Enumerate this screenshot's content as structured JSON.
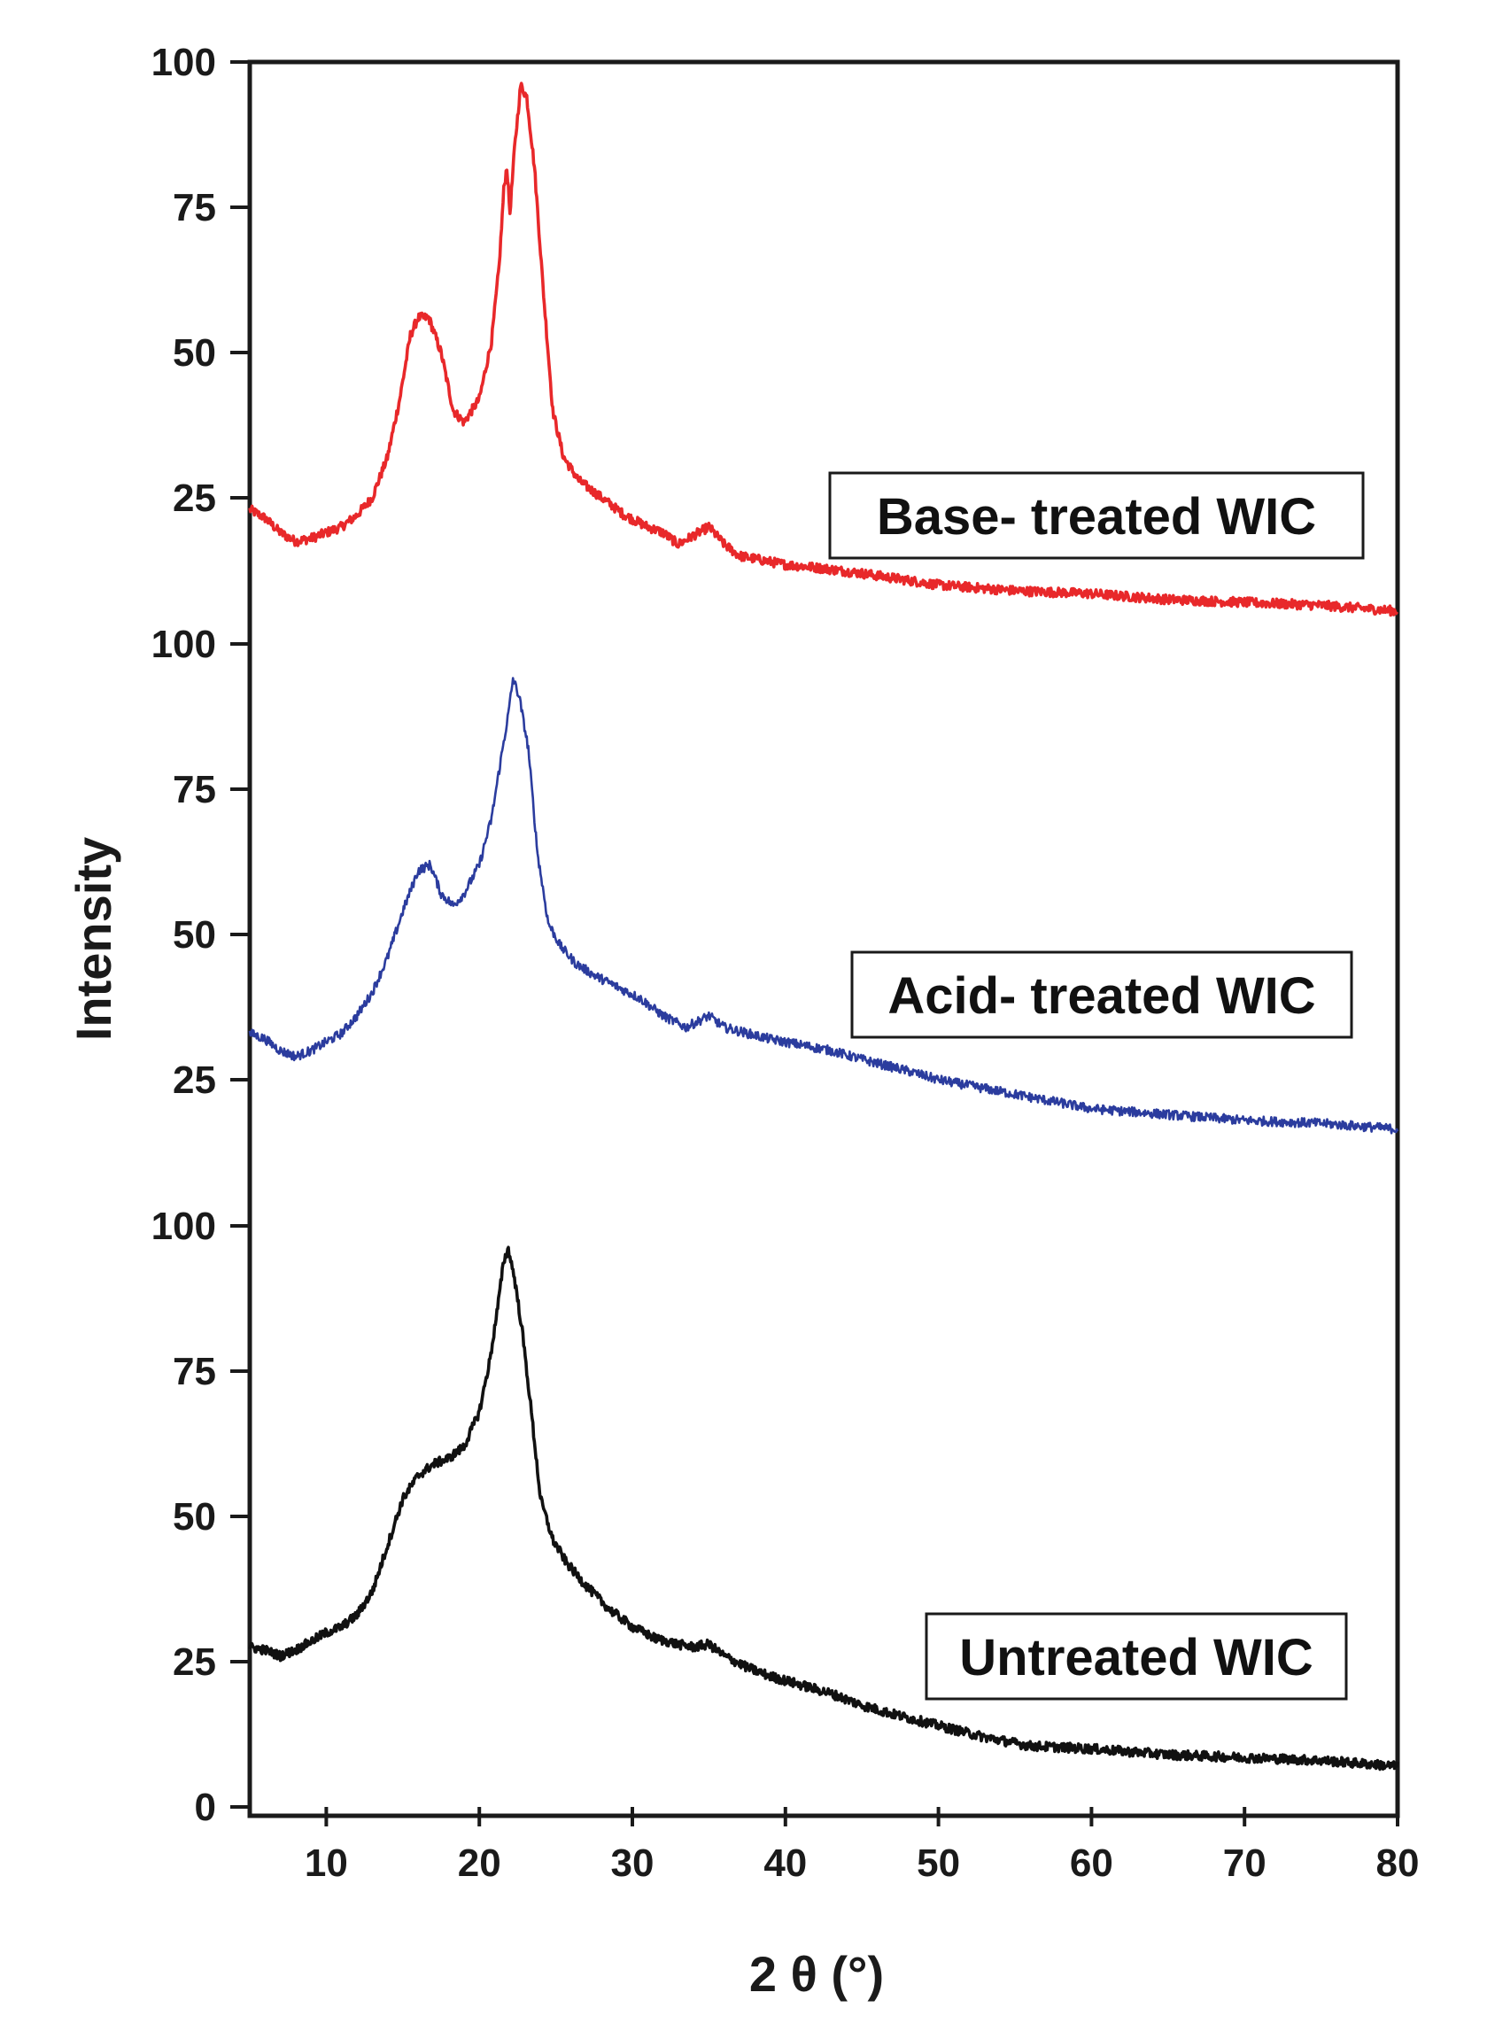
{
  "chart_data": {
    "type": "line",
    "xlabel": "2 θ (°)",
    "ylabel": "Intensity",
    "xlim": [
      5,
      80
    ],
    "x_ticks": [
      10,
      20,
      30,
      40,
      50,
      60,
      70,
      80
    ],
    "grid": false,
    "panels": [
      {
        "label": "Base- treated WIC",
        "color": "#e8282a",
        "ylim": [
          0,
          100
        ],
        "y_ticks": [
          25,
          50,
          75,
          100
        ],
        "points": [
          [
            5,
            23
          ],
          [
            6,
            21.5
          ],
          [
            7,
            19
          ],
          [
            8,
            17.5
          ],
          [
            9,
            18
          ],
          [
            10,
            19
          ],
          [
            11,
            20
          ],
          [
            12,
            22
          ],
          [
            13,
            25
          ],
          [
            14,
            32
          ],
          [
            14.8,
            42
          ],
          [
            15.5,
            53
          ],
          [
            16,
            56
          ],
          [
            16.7,
            56
          ],
          [
            17.5,
            50
          ],
          [
            18.3,
            40
          ],
          [
            19,
            38
          ],
          [
            20,
            42
          ],
          [
            20.8,
            52
          ],
          [
            21.3,
            65
          ],
          [
            21.6,
            78
          ],
          [
            21.8,
            82
          ],
          [
            22,
            74
          ],
          [
            22.3,
            85
          ],
          [
            22.7,
            96
          ],
          [
            23.1,
            94
          ],
          [
            23.6,
            82
          ],
          [
            24.2,
            60
          ],
          [
            24.8,
            40
          ],
          [
            25.5,
            32
          ],
          [
            26.5,
            28
          ],
          [
            28,
            25
          ],
          [
            29.5,
            22
          ],
          [
            31,
            20
          ],
          [
            32,
            19
          ],
          [
            33,
            17
          ],
          [
            34,
            18.5
          ],
          [
            35,
            20
          ],
          [
            36,
            17
          ],
          [
            37,
            15
          ],
          [
            38,
            14.5
          ],
          [
            40,
            13.5
          ],
          [
            42,
            13
          ],
          [
            45,
            12
          ],
          [
            50,
            10
          ],
          [
            55,
            9
          ],
          [
            60,
            8.5
          ],
          [
            65,
            7.5
          ],
          [
            70,
            7
          ],
          [
            75,
            6.5
          ],
          [
            80,
            5.5
          ]
        ]
      },
      {
        "label": "Acid- treated WIC",
        "color": "#2b3c9e",
        "ylim": [
          0,
          100
        ],
        "y_ticks": [
          25,
          50,
          75,
          100
        ],
        "points": [
          [
            5,
            33
          ],
          [
            6,
            32
          ],
          [
            7,
            30
          ],
          [
            8,
            29
          ],
          [
            9,
            30
          ],
          [
            10,
            31.5
          ],
          [
            11,
            33
          ],
          [
            12,
            36
          ],
          [
            13,
            40
          ],
          [
            14,
            46
          ],
          [
            15,
            54
          ],
          [
            16,
            61
          ],
          [
            16.8,
            62
          ],
          [
            17.5,
            57
          ],
          [
            18.3,
            55
          ],
          [
            19,
            57
          ],
          [
            20,
            62
          ],
          [
            20.8,
            70
          ],
          [
            21.4,
            80
          ],
          [
            21.9,
            88
          ],
          [
            22.2,
            94
          ],
          [
            22.6,
            91
          ],
          [
            23.2,
            82
          ],
          [
            23.8,
            64
          ],
          [
            24.5,
            52
          ],
          [
            25.3,
            48
          ],
          [
            26.3,
            45
          ],
          [
            27.5,
            43
          ],
          [
            29,
            41
          ],
          [
            30.5,
            39
          ],
          [
            32,
            36
          ],
          [
            33.5,
            34
          ],
          [
            35,
            36
          ],
          [
            36,
            34
          ],
          [
            37.5,
            33
          ],
          [
            39,
            32
          ],
          [
            41,
            31
          ],
          [
            43,
            30
          ],
          [
            45,
            28.5
          ],
          [
            48,
            26.5
          ],
          [
            50,
            25
          ],
          [
            53,
            23.5
          ],
          [
            56,
            22
          ],
          [
            60,
            20
          ],
          [
            65,
            19
          ],
          [
            70,
            18
          ],
          [
            75,
            17.5
          ],
          [
            80,
            16.5
          ]
        ]
      },
      {
        "label": "Untreated WIC",
        "color": "#111111",
        "ylim": [
          0,
          100
        ],
        "y_ticks": [
          0,
          25,
          50,
          75,
          100
        ],
        "points": [
          [
            5,
            27.5
          ],
          [
            6,
            27
          ],
          [
            7,
            26
          ],
          [
            8,
            27
          ],
          [
            9,
            28.5
          ],
          [
            10,
            30
          ],
          [
            11,
            31
          ],
          [
            12,
            33
          ],
          [
            13,
            37
          ],
          [
            14,
            45
          ],
          [
            15,
            53
          ],
          [
            16,
            57
          ],
          [
            17,
            59
          ],
          [
            18,
            60
          ],
          [
            19,
            62
          ],
          [
            20,
            68
          ],
          [
            20.7,
            77
          ],
          [
            21.2,
            86
          ],
          [
            21.6,
            94
          ],
          [
            21.9,
            96
          ],
          [
            22.3,
            91
          ],
          [
            22.8,
            82
          ],
          [
            23.4,
            68
          ],
          [
            24,
            53
          ],
          [
            24.8,
            46
          ],
          [
            25.7,
            42
          ],
          [
            27,
            38
          ],
          [
            28.5,
            34
          ],
          [
            30,
            31
          ],
          [
            31.5,
            29
          ],
          [
            33,
            28
          ],
          [
            34,
            27.5
          ],
          [
            35,
            28
          ],
          [
            36,
            26
          ],
          [
            37.5,
            24
          ],
          [
            39,
            22.5
          ],
          [
            41,
            21
          ],
          [
            43,
            19.5
          ],
          [
            45,
            17.5
          ],
          [
            47,
            16
          ],
          [
            50,
            14
          ],
          [
            53,
            12
          ],
          [
            56,
            10.5
          ],
          [
            60,
            10
          ],
          [
            65,
            9
          ],
          [
            70,
            8.5
          ],
          [
            75,
            8
          ],
          [
            80,
            7
          ]
        ]
      }
    ]
  }
}
